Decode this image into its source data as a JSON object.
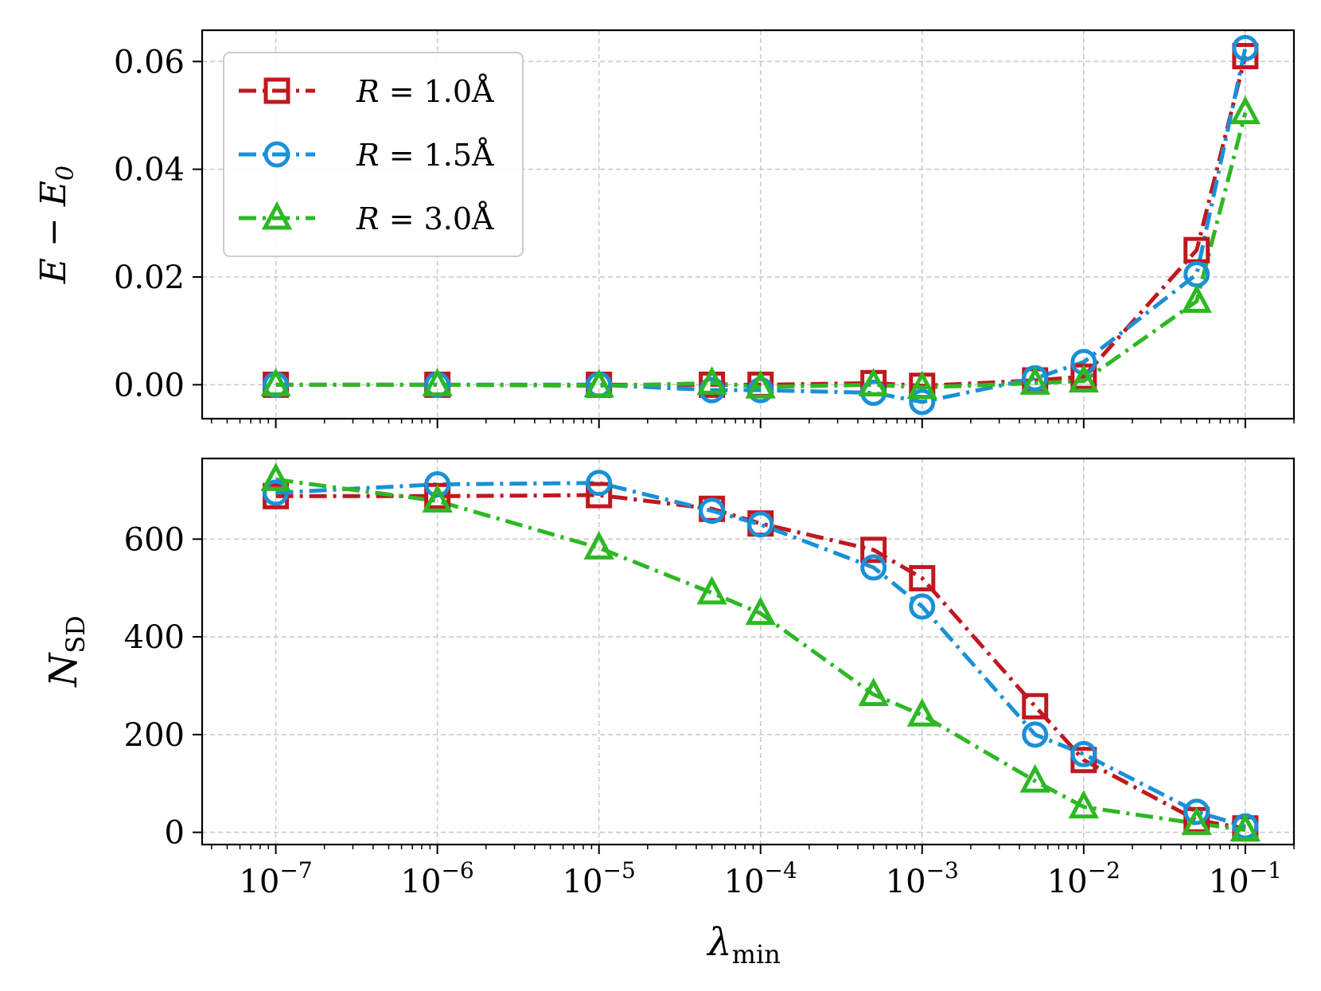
{
  "chart_data": [
    {
      "type": "line",
      "panel": "top",
      "xscale": "log",
      "x": [
        1e-07,
        1e-06,
        1e-05,
        5e-05,
        0.0001,
        0.0005,
        0.001,
        0.005,
        0.01,
        0.05,
        0.1
      ],
      "xlim": [
        3.5e-08,
        0.2
      ],
      "ylim": [
        -0.0063,
        0.0658
      ],
      "yticks": [
        0.0,
        0.02,
        0.04,
        0.06
      ],
      "ytick_labels": [
        "0.00",
        "0.02",
        "0.04",
        "0.06"
      ],
      "ylabel": "E − E0",
      "xlabel": "",
      "grid": true,
      "legend": {
        "position": "top-left"
      },
      "series": [
        {
          "name": "R = 1.0Å",
          "color": "#c0181f",
          "marker": "square",
          "values": [
            0.0,
            0.0,
            0.0,
            0.0,
            0.0,
            0.0003,
            -0.0002,
            0.0008,
            0.0015,
            0.025,
            0.061
          ]
        },
        {
          "name": "R = 1.5Å",
          "color": "#1a90d6",
          "marker": "circle",
          "values": [
            0.0,
            0.0,
            0.0,
            -0.001,
            -0.001,
            -0.0015,
            -0.0032,
            0.0012,
            0.0042,
            0.0205,
            0.0625
          ]
        },
        {
          "name": "R = 3.0Å",
          "color": "#2db823",
          "marker": "triangle",
          "values": [
            0.0,
            0.0,
            -0.0002,
            0.0003,
            -0.0004,
            0.0,
            -0.0005,
            0.0003,
            0.0007,
            0.0155,
            0.0505
          ]
        }
      ]
    },
    {
      "type": "line",
      "panel": "bottom",
      "xscale": "log",
      "x": [
        1e-07,
        1e-06,
        1e-05,
        5e-05,
        0.0001,
        0.0005,
        0.001,
        0.005,
        0.01,
        0.05,
        0.1
      ],
      "xlim": [
        3.5e-08,
        0.2
      ],
      "ylim": [
        -25,
        765
      ],
      "yticks": [
        0,
        200,
        400,
        600
      ],
      "ytick_labels": [
        "0",
        "200",
        "400",
        "600"
      ],
      "xticks": [
        1e-07,
        1e-06,
        1e-05,
        0.0001,
        0.001,
        0.01,
        0.1
      ],
      "xtick_labels": [
        {
          "base": "10",
          "exp": "−7"
        },
        {
          "base": "10",
          "exp": "−6"
        },
        {
          "base": "10",
          "exp": "−5"
        },
        {
          "base": "10",
          "exp": "−4"
        },
        {
          "base": "10",
          "exp": "−3"
        },
        {
          "base": "10",
          "exp": "−2"
        },
        {
          "base": "10",
          "exp": "−1"
        }
      ],
      "ylabel": {
        "main": "N",
        "sub": "SD"
      },
      "xlabel": {
        "main": "λ",
        "sub": "min"
      },
      "grid": true,
      "series": [
        {
          "name": "R = 1.0Å",
          "color": "#c0181f",
          "marker": "square",
          "values": [
            688,
            688,
            690,
            662,
            632,
            578,
            520,
            258,
            148,
            25,
            8
          ]
        },
        {
          "name": "R = 1.5Å",
          "color": "#1a90d6",
          "marker": "circle",
          "values": [
            695,
            712,
            715,
            658,
            630,
            542,
            462,
            200,
            160,
            42,
            12
          ]
        },
        {
          "name": "R = 3.0Å",
          "color": "#2db823",
          "marker": "triangle",
          "values": [
            722,
            678,
            582,
            490,
            448,
            282,
            240,
            105,
            52,
            18,
            5
          ]
        }
      ]
    }
  ],
  "legend": {
    "entries": [
      {
        "prefix": "R",
        "eq": " = ",
        "value": "1.0Å",
        "color": "#c0181f",
        "marker": "square"
      },
      {
        "prefix": "R",
        "eq": " = ",
        "value": "1.5Å",
        "color": "#1a90d6",
        "marker": "circle"
      },
      {
        "prefix": "R",
        "eq": " = ",
        "value": "3.0Å",
        "color": "#2db823",
        "marker": "triangle"
      }
    ]
  },
  "top_ylabel": {
    "a": "E",
    "minus": " − ",
    "b": "E",
    "sub": "0"
  }
}
